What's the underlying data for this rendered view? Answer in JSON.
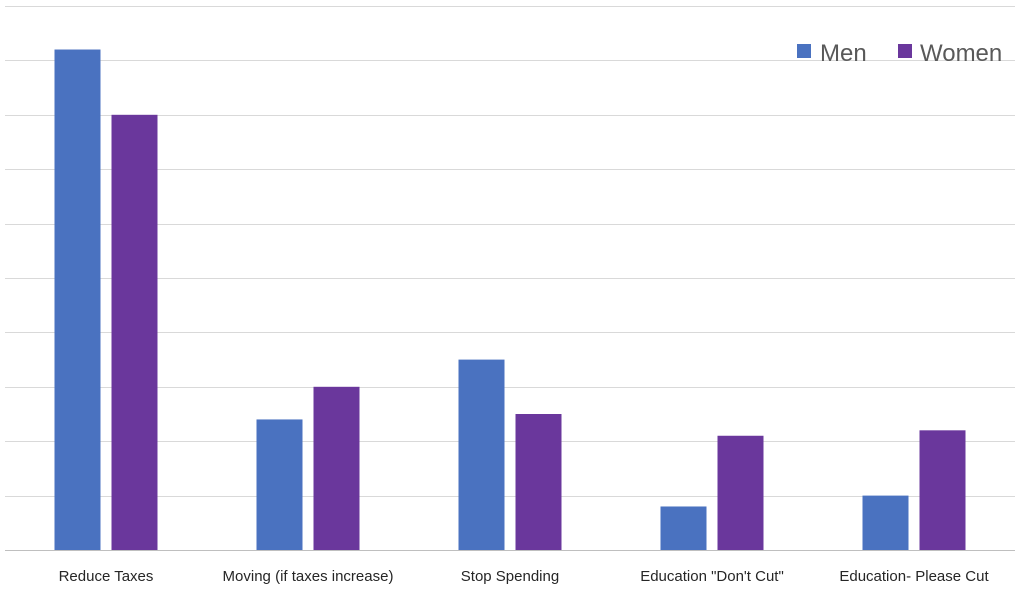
{
  "chart_data": {
    "type": "bar",
    "categories": [
      "Reduce Taxes",
      "Moving (if taxes increase)",
      "Stop Spending",
      "Education \"Don't Cut\"",
      "Education- Please Cut"
    ],
    "series": [
      {
        "name": "Men",
        "color": "#4a72c0",
        "values": [
          9.2,
          2.4,
          3.5,
          0.8,
          1.0
        ]
      },
      {
        "name": "Women",
        "color": "#6a379c",
        "values": [
          8.0,
          3.0,
          2.5,
          2.1,
          2.2
        ]
      }
    ],
    "ylim": [
      0,
      10
    ],
    "y_gridline_step": 1,
    "y_tick_labels_shown": false,
    "grid": true,
    "legend_position": "top-right",
    "title": "",
    "xlabel": "",
    "ylabel": ""
  }
}
